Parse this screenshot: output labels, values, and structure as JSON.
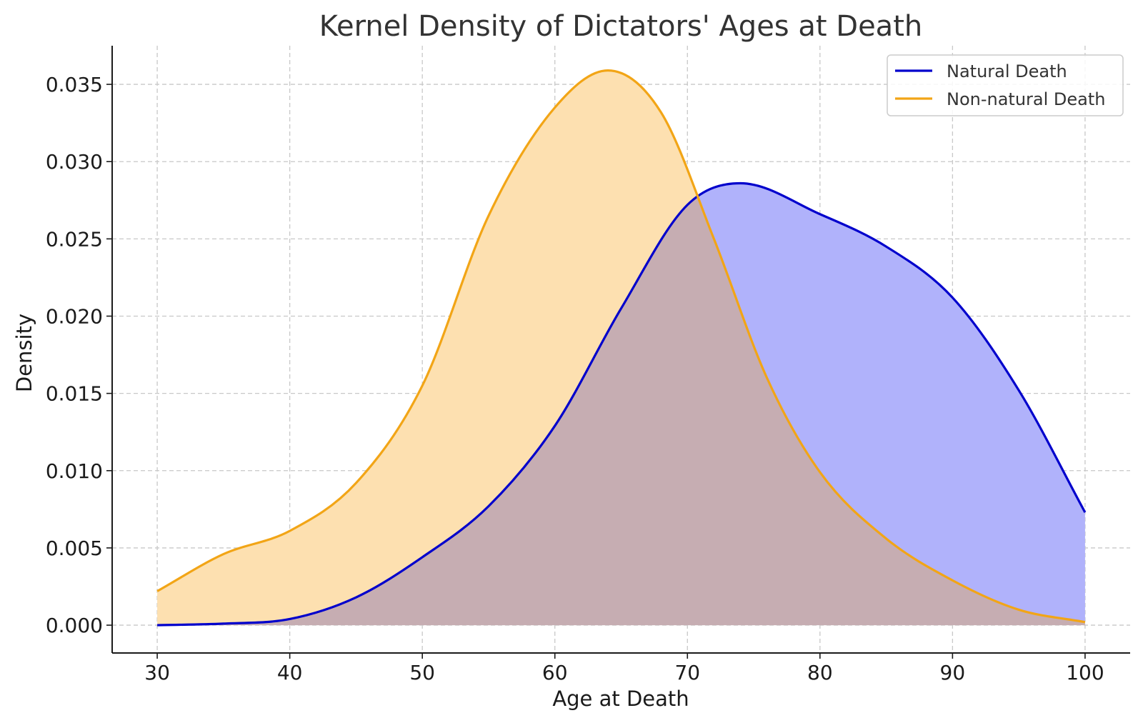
{
  "chart_data": {
    "type": "area",
    "title": "Kernel Density of Dictators' Ages at Death",
    "xlabel": "Age at Death",
    "ylabel": "Density",
    "xlim": [
      26.6,
      103.4
    ],
    "ylim": [
      -0.0018,
      0.0375
    ],
    "xticks": [
      30,
      40,
      50,
      60,
      70,
      80,
      90,
      100
    ],
    "xtick_labels": [
      "30",
      "40",
      "50",
      "60",
      "70",
      "80",
      "90",
      "100"
    ],
    "yticks": [
      0,
      0.005,
      0.01,
      0.015,
      0.02,
      0.025,
      0.03,
      0.035
    ],
    "ytick_labels": [
      "0.000",
      "0.005",
      "0.010",
      "0.015",
      "0.020",
      "0.025",
      "0.030",
      "0.035"
    ],
    "grid": true,
    "legend_position": "top-right",
    "series": [
      {
        "name": "Natural Death",
        "color": "#0000cc",
        "fill": "#b0b2fb",
        "x": [
          30,
          35,
          40,
          45,
          50,
          55,
          60,
          65,
          70,
          74,
          80,
          85,
          90,
          95,
          100
        ],
        "y": [
          0.0,
          0.0001,
          0.0004,
          0.0018,
          0.0044,
          0.0077,
          0.0129,
          0.0205,
          0.0272,
          0.0286,
          0.0266,
          0.0245,
          0.0212,
          0.0152,
          0.0073
        ]
      },
      {
        "name": "Non-natural Death",
        "color": "#f2a516",
        "fill": "#fde0b0",
        "x": [
          30,
          35,
          40,
          45,
          50,
          55,
          60,
          64,
          68,
          72,
          76,
          80,
          85,
          90,
          95,
          100
        ],
        "y": [
          0.0022,
          0.0046,
          0.0061,
          0.0092,
          0.0155,
          0.0265,
          0.0335,
          0.0359,
          0.0332,
          0.025,
          0.016,
          0.0099,
          0.0056,
          0.0029,
          0.001,
          0.0002
        ]
      }
    ],
    "overlap_fill": "#c6adb2"
  }
}
